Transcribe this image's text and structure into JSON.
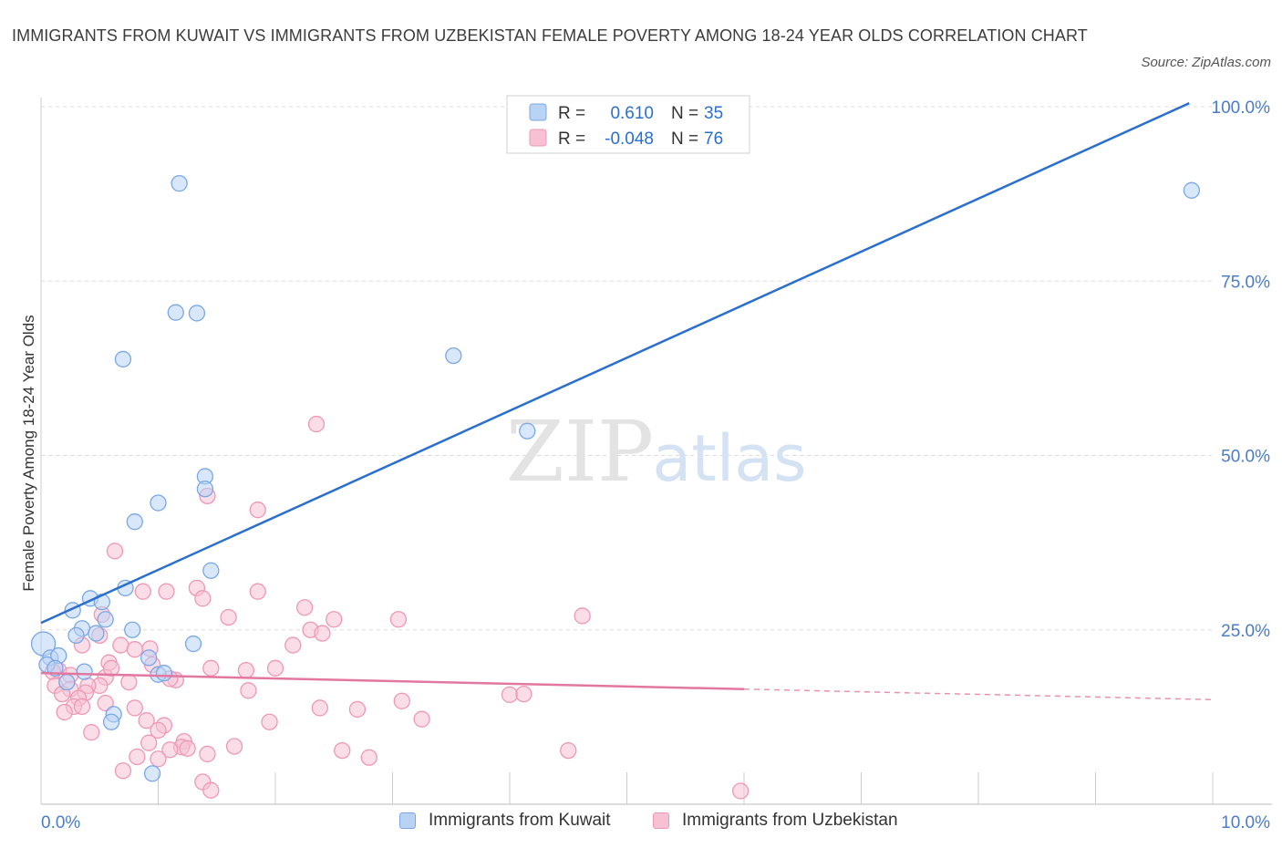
{
  "title": "IMMIGRANTS FROM KUWAIT VS IMMIGRANTS FROM UZBEKISTAN FEMALE POVERTY AMONG 18-24 YEAR OLDS CORRELATION CHART",
  "source": "Source: ZipAtlas.com",
  "watermark": {
    "zip": "ZIP",
    "atlas": "atlas"
  },
  "colors": {
    "kuwait_fill": "#b9d3f5",
    "kuwait_stroke": "#7aa7e6",
    "kuwait_line": "#2a6fcf",
    "uzbek_fill": "#f7c1d3",
    "uzbek_stroke": "#ee98b6",
    "uzbek_line": "#e2779f",
    "axis_label": "#4a7cc7",
    "grid": "#dcdcdc"
  },
  "stats_legend": [
    {
      "r_label": "R =",
      "r_value": "0.610",
      "n_label": "N =",
      "n_value": "35"
    },
    {
      "r_label": "R =",
      "r_value": "-0.048",
      "n_label": "N =",
      "n_value": "76"
    }
  ],
  "chart_data": {
    "type": "scatter",
    "xlabel": "",
    "ylabel": "Female Poverty Among 18-24 Year Olds",
    "xlim": [
      0,
      10
    ],
    "ylim": [
      0,
      100
    ],
    "x_tick_labels": [
      "0.0%",
      "10.0%"
    ],
    "y_tick_labels": [
      "25.0%",
      "50.0%",
      "75.0%",
      "100.0%"
    ],
    "y_ticks": [
      25,
      50,
      75,
      100
    ],
    "grid": true,
    "legend_position": "bottom",
    "series": [
      {
        "name": "Immigrants from Kuwait",
        "trend": {
          "x0": 0.0,
          "y0": 26.0,
          "x1": 9.8,
          "y1": 100.5
        },
        "points": [
          [
            1.18,
            89.0
          ],
          [
            9.82,
            88.0
          ],
          [
            1.15,
            70.5
          ],
          [
            1.33,
            70.4
          ],
          [
            0.7,
            63.8
          ],
          [
            3.52,
            64.3
          ],
          [
            4.15,
            53.5
          ],
          [
            1.4,
            47.0
          ],
          [
            1.4,
            45.2
          ],
          [
            1.0,
            43.2
          ],
          [
            0.8,
            40.5
          ],
          [
            1.45,
            33.5
          ],
          [
            0.72,
            31.0
          ],
          [
            0.42,
            29.5
          ],
          [
            0.52,
            29.0
          ],
          [
            0.27,
            27.8
          ],
          [
            0.55,
            26.5
          ],
          [
            0.35,
            25.2
          ],
          [
            0.78,
            25.0
          ],
          [
            0.47,
            24.5
          ],
          [
            0.3,
            24.2
          ],
          [
            1.3,
            23.0
          ],
          [
            0.02,
            23.0
          ],
          [
            0.08,
            21.0
          ],
          [
            0.15,
            21.3
          ],
          [
            0.92,
            21.0
          ],
          [
            0.05,
            20.0
          ],
          [
            0.12,
            19.5
          ],
          [
            0.37,
            19.0
          ],
          [
            1.0,
            18.6
          ],
          [
            1.05,
            18.8
          ],
          [
            0.22,
            17.5
          ],
          [
            0.62,
            12.9
          ],
          [
            0.6,
            11.8
          ],
          [
            0.95,
            4.4
          ]
        ]
      },
      {
        "name": "Immigrants from Uzbekistan",
        "trend": {
          "x0": 0.0,
          "y0": 18.8,
          "x1": 6.0,
          "y1": 16.5,
          "dash_x1": 10.0,
          "dash_y1": 15.0
        },
        "points": [
          [
            2.35,
            54.5
          ],
          [
            1.42,
            44.2
          ],
          [
            1.85,
            42.2
          ],
          [
            0.63,
            36.3
          ],
          [
            1.33,
            31.0
          ],
          [
            1.07,
            30.5
          ],
          [
            0.87,
            30.5
          ],
          [
            1.38,
            29.5
          ],
          [
            1.85,
            30.5
          ],
          [
            2.25,
            28.2
          ],
          [
            2.5,
            26.5
          ],
          [
            3.05,
            26.5
          ],
          [
            4.62,
            27.0
          ],
          [
            1.6,
            26.8
          ],
          [
            0.52,
            27.2
          ],
          [
            2.3,
            25.0
          ],
          [
            2.4,
            24.5
          ],
          [
            0.5,
            24.2
          ],
          [
            0.35,
            22.8
          ],
          [
            0.68,
            22.8
          ],
          [
            0.8,
            22.2
          ],
          [
            0.93,
            22.3
          ],
          [
            2.15,
            22.8
          ],
          [
            0.58,
            20.3
          ],
          [
            0.95,
            20.0
          ],
          [
            1.45,
            19.5
          ],
          [
            1.75,
            19.2
          ],
          [
            2.0,
            19.5
          ],
          [
            0.15,
            19.2
          ],
          [
            0.1,
            19.0
          ],
          [
            0.25,
            18.5
          ],
          [
            0.55,
            18.2
          ],
          [
            0.75,
            17.5
          ],
          [
            1.15,
            17.8
          ],
          [
            0.5,
            17.0
          ],
          [
            0.4,
            17.0
          ],
          [
            0.12,
            17.0
          ],
          [
            0.25,
            16.5
          ],
          [
            0.38,
            16.0
          ],
          [
            1.77,
            16.3
          ],
          [
            0.18,
            15.8
          ],
          [
            0.32,
            15.2
          ],
          [
            0.28,
            14.0
          ],
          [
            0.35,
            14.0
          ],
          [
            3.08,
            14.8
          ],
          [
            4.0,
            15.7
          ],
          [
            4.12,
            15.8
          ],
          [
            2.38,
            13.8
          ],
          [
            2.7,
            13.6
          ],
          [
            0.8,
            13.8
          ],
          [
            0.2,
            13.2
          ],
          [
            3.25,
            12.2
          ],
          [
            0.9,
            12.0
          ],
          [
            1.95,
            11.8
          ],
          [
            1.05,
            11.3
          ],
          [
            1.0,
            10.6
          ],
          [
            0.43,
            10.3
          ],
          [
            1.22,
            9.0
          ],
          [
            0.92,
            8.8
          ],
          [
            1.2,
            8.2
          ],
          [
            1.25,
            8.0
          ],
          [
            1.1,
            7.8
          ],
          [
            1.65,
            8.3
          ],
          [
            2.57,
            7.7
          ],
          [
            1.42,
            7.2
          ],
          [
            0.82,
            6.8
          ],
          [
            2.8,
            6.7
          ],
          [
            4.5,
            7.7
          ],
          [
            1.0,
            6.5
          ],
          [
            0.7,
            4.8
          ],
          [
            1.38,
            3.2
          ],
          [
            1.45,
            2.0
          ],
          [
            5.97,
            1.9
          ],
          [
            0.55,
            14.5
          ],
          [
            0.6,
            19.5
          ],
          [
            1.1,
            18.0
          ]
        ]
      }
    ]
  }
}
